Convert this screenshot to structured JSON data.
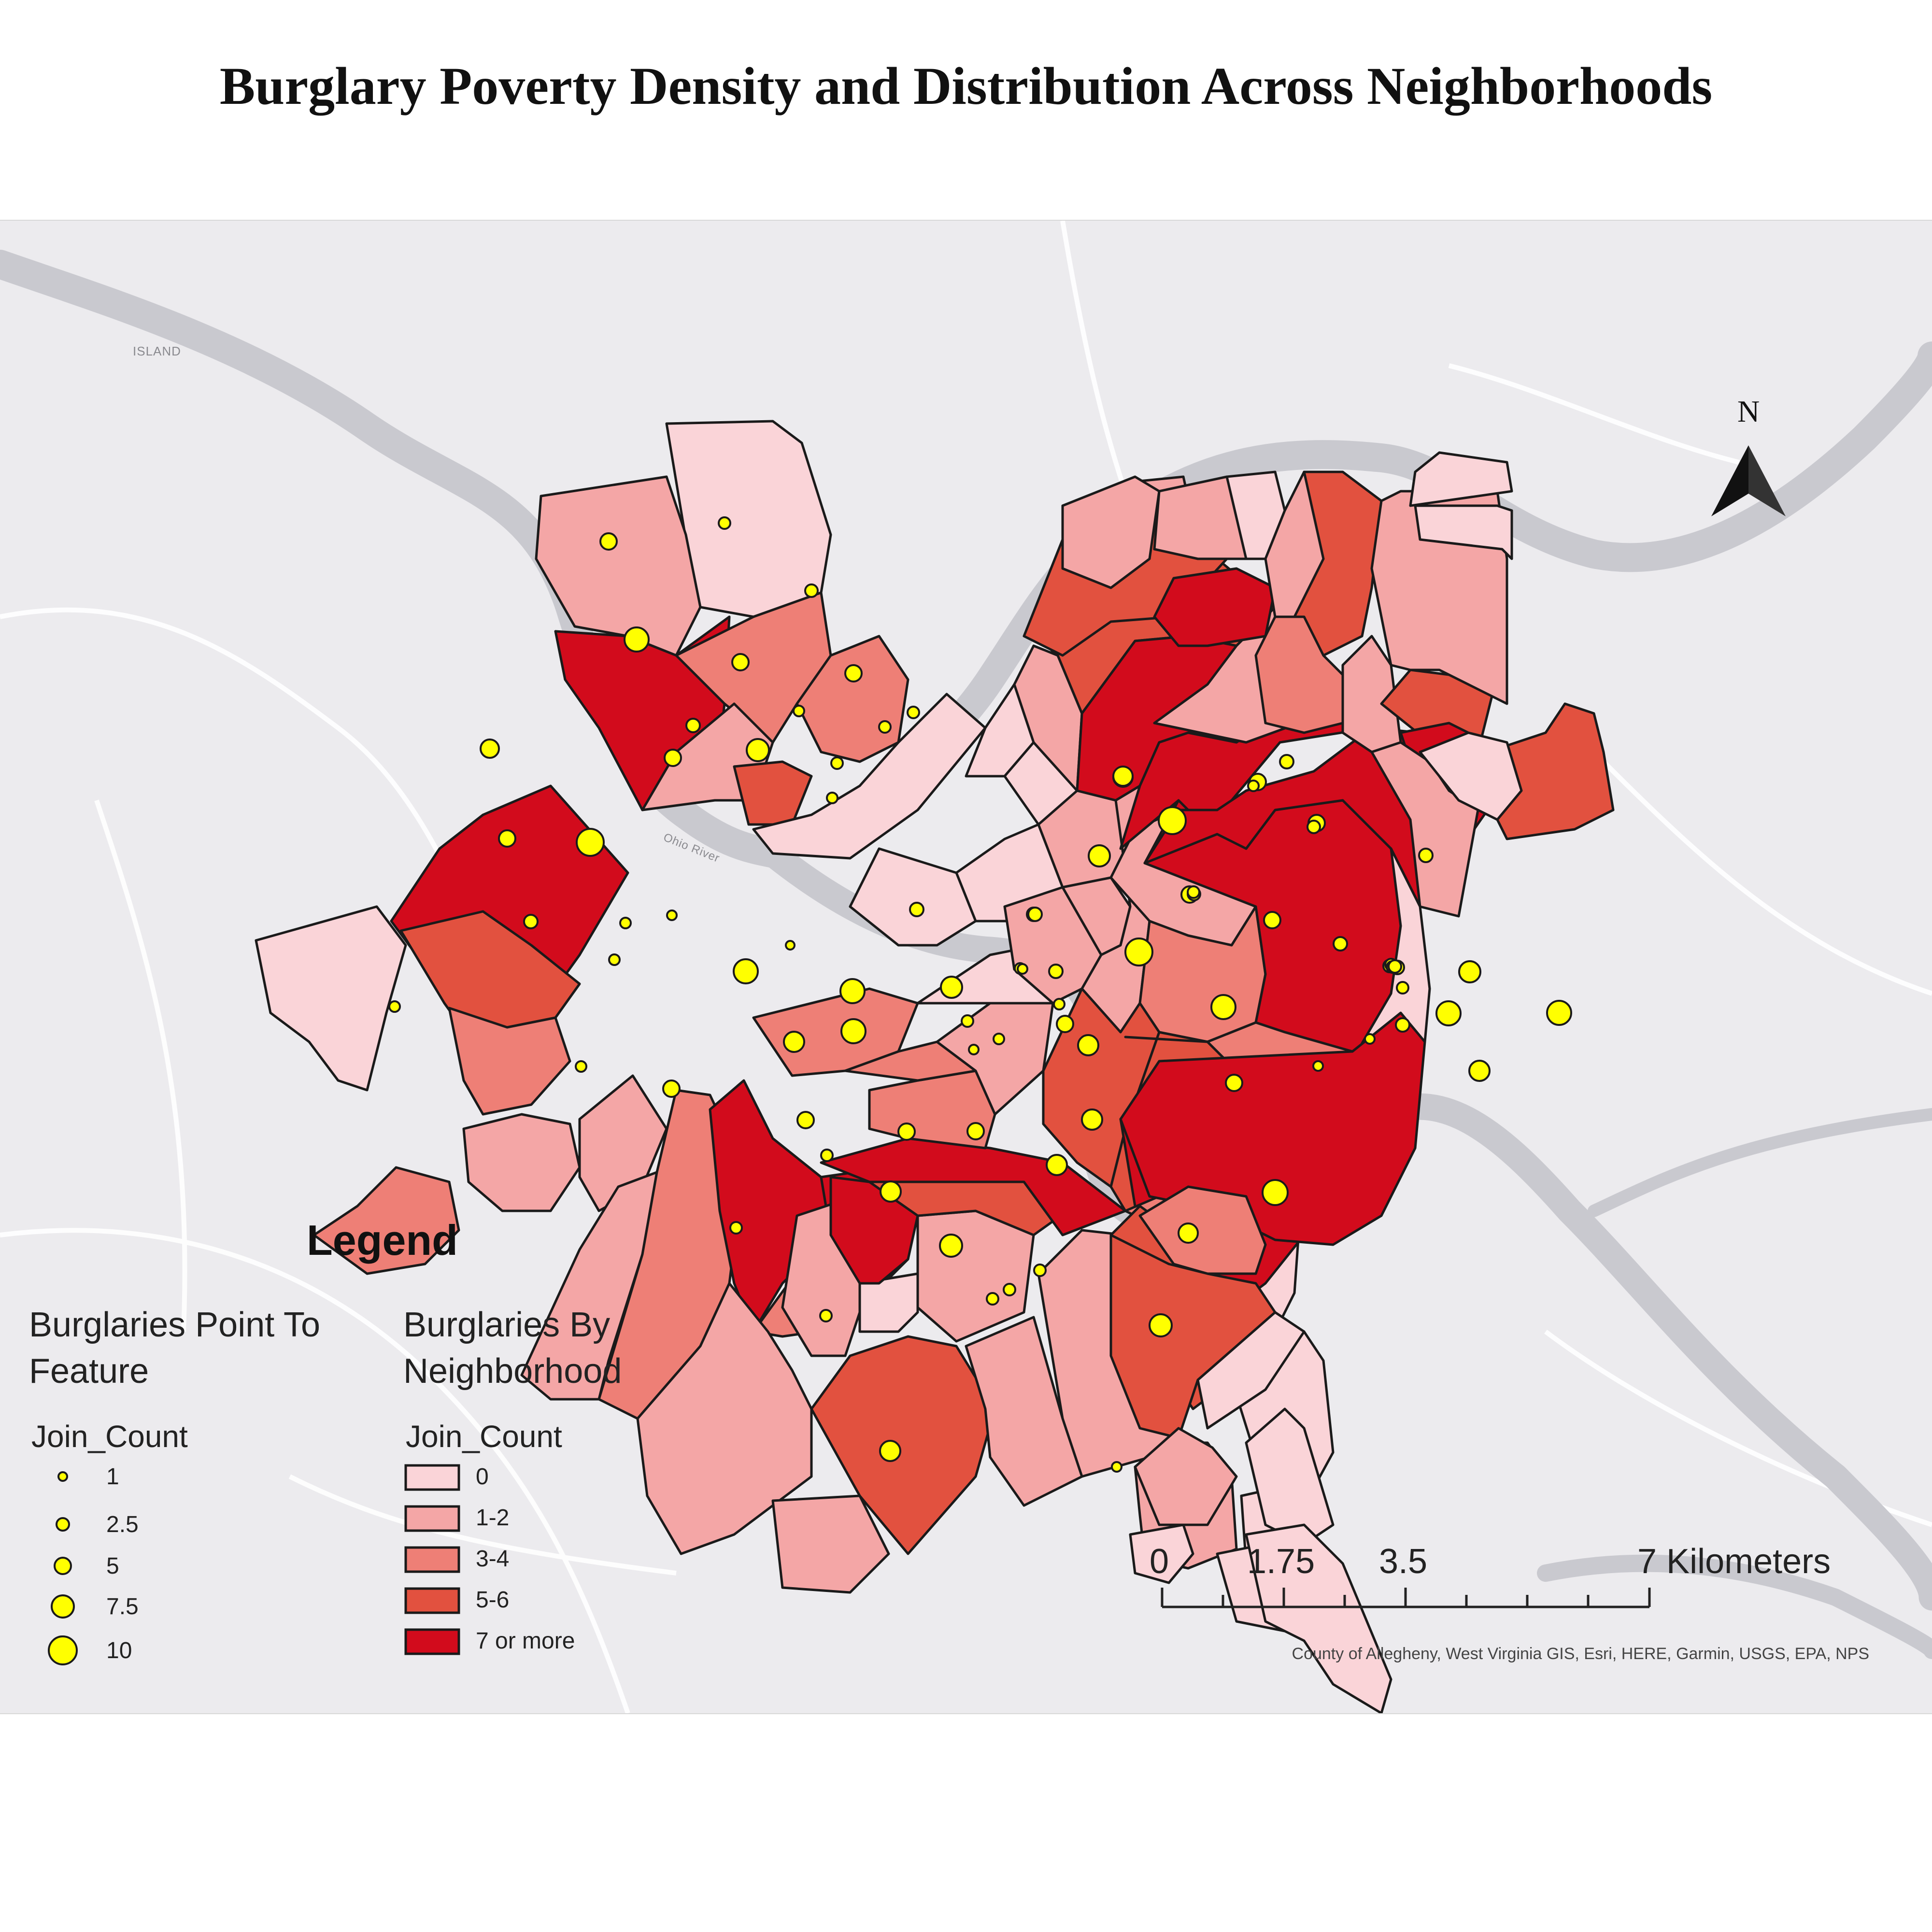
{
  "title": "Burglary Poverty Density and Distribution Across Neighborhoods",
  "north_arrow": {
    "label": "N"
  },
  "basemap_labels": [
    "ISLAND",
    "Ohio River"
  ],
  "legend": {
    "title": "Legend",
    "points": {
      "heading_line1": "Burglaries Point To",
      "heading_line2": "Feature",
      "field": "Join_Count",
      "items": [
        "1",
        "2.5",
        "5",
        "7.5",
        "10"
      ]
    },
    "polygons": {
      "heading_line1": "Burglaries By",
      "heading_line2": "Neighborhood",
      "field": "Join_Count",
      "items": [
        {
          "label": "0",
          "color": "#fad4d8"
        },
        {
          "label": "1-2",
          "color": "#f4a6a6"
        },
        {
          "label": "3-4",
          "color": "#ee7f76"
        },
        {
          "label": "5-6",
          "color": "#e2513f"
        },
        {
          "label": "7 or more",
          "color": "#d20b1c"
        }
      ]
    }
  },
  "colors": {
    "class0": "#fad4d8",
    "class1": "#f4a6a6",
    "class2": "#ee7f76",
    "class3": "#e2513f",
    "class4": "#d20b1c",
    "point": "#ffff00",
    "river": "#c9c9cf",
    "background": "#ecebee"
  },
  "scale_bar": {
    "labels": [
      "0",
      "1.75",
      "3.5",
      "7 Kilometers"
    ]
  },
  "attribution": "County of Allegheny, West Virginia GIS, Esri, HERE, Garmin, USGS, EPA, NPS"
}
